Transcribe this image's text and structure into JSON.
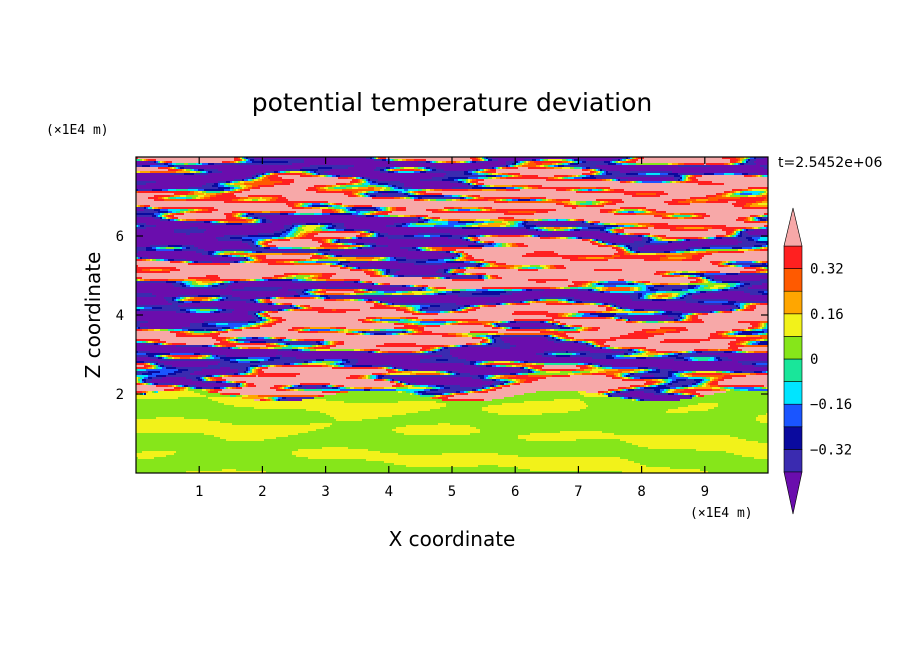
{
  "chart_data": {
    "type": "heatmap",
    "title": "potential temperature deviation",
    "xlabel": "X coordinate",
    "ylabel": "Z coordinate",
    "x_unit": "(×1E4 m)",
    "y_unit": "(×1E4 m)",
    "time_label": "t=2.5452e+06",
    "xlim": [
      0,
      10
    ],
    "ylim": [
      0,
      8
    ],
    "x_ticks": [
      1,
      2,
      3,
      4,
      5,
      6,
      7,
      8,
      9
    ],
    "y_ticks": [
      2,
      4,
      6
    ],
    "colorbar": {
      "levels": [
        -0.4,
        -0.32,
        -0.24,
        -0.16,
        -0.08,
        0,
        0.08,
        0.16,
        0.24,
        0.32,
        0.4
      ],
      "labeled": [
        "0.32",
        "0.16",
        "0",
        "−0.16",
        "−0.32"
      ],
      "colors_low_to_high": [
        "#6a0dad",
        "#3a2bb0",
        "#0a0a9e",
        "#1a55ff",
        "#00e5ff",
        "#19e69a",
        "#86e61a",
        "#f2f21a",
        "#ffa600",
        "#ff5a00",
        "#ff2020",
        "#f7a8a8"
      ],
      "extends": "both"
    },
    "field_description": {
      "lower_layer": {
        "z_range": [
          0,
          2
        ],
        "dominant_values": [
          0,
          0.08
        ]
      },
      "upper_layer": {
        "z_range": [
          2,
          8
        ],
        "alternating_values": [
          -0.4,
          0.4
        ]
      }
    }
  }
}
